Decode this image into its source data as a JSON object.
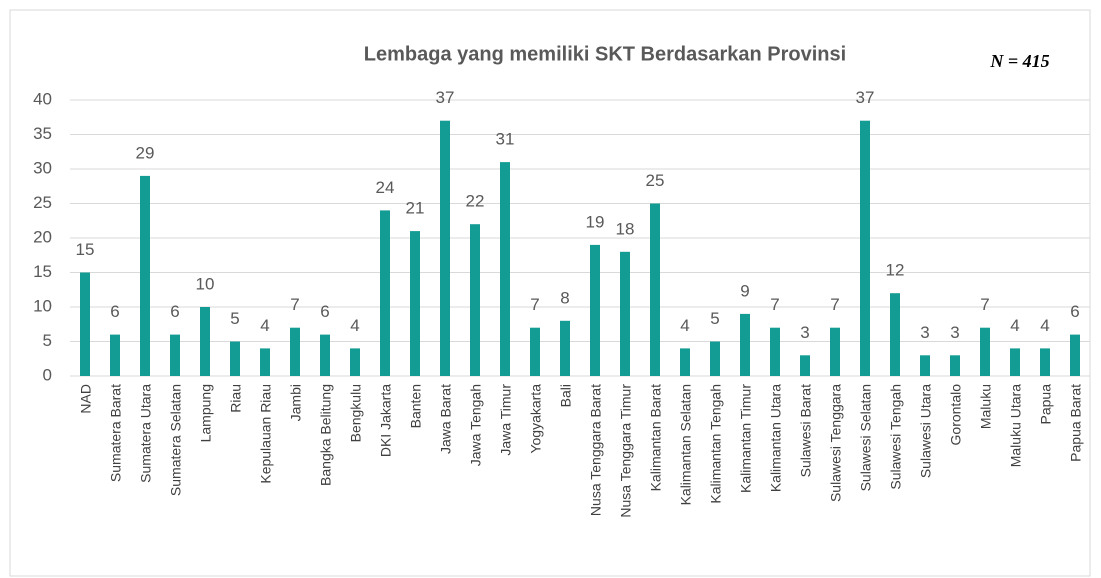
{
  "chart_data": {
    "type": "bar",
    "title": "Lembaga yang memiliki SKT Berdasarkan Provinsi",
    "annotation": "N = 415",
    "categories": [
      "NAD",
      "Sumatera Barat",
      "Sumatera Utara",
      "Sumatera Selatan",
      "Lampung",
      "Riau",
      "Kepulauan Riau",
      "Jambi",
      "Bangka Belitung",
      "Bengkulu",
      "DKI Jakarta",
      "Banten",
      "Jawa Barat",
      "Jawa Tengah",
      "Jawa Timur",
      "Yogyakarta",
      "Bali",
      "Nusa Tenggara Barat",
      "Nusa Tenggara Timur",
      "Kalimantan Barat",
      "Kalimantan Selatan",
      "Kalimantan Tengah",
      "Kalimantan Timur",
      "Kalimantan Utara",
      "Sulawesi Barat",
      "Sulawesi Tenggara",
      "Sulawesi Selatan",
      "Sulawesi Tengah",
      "Sulawesi Utara",
      "Gorontalo",
      "Maluku",
      "Maluku Utara",
      "Papua",
      "Papua Barat"
    ],
    "values": [
      15,
      6,
      29,
      6,
      10,
      5,
      4,
      7,
      6,
      4,
      24,
      21,
      37,
      22,
      31,
      7,
      8,
      19,
      18,
      25,
      4,
      5,
      9,
      7,
      3,
      7,
      37,
      12,
      3,
      3,
      7,
      4,
      4,
      6
    ],
    "color": "#139c93",
    "ylim": [
      0,
      40
    ],
    "yticks": [
      0,
      5,
      10,
      15,
      20,
      25,
      30,
      35,
      40
    ],
    "grid": true
  }
}
